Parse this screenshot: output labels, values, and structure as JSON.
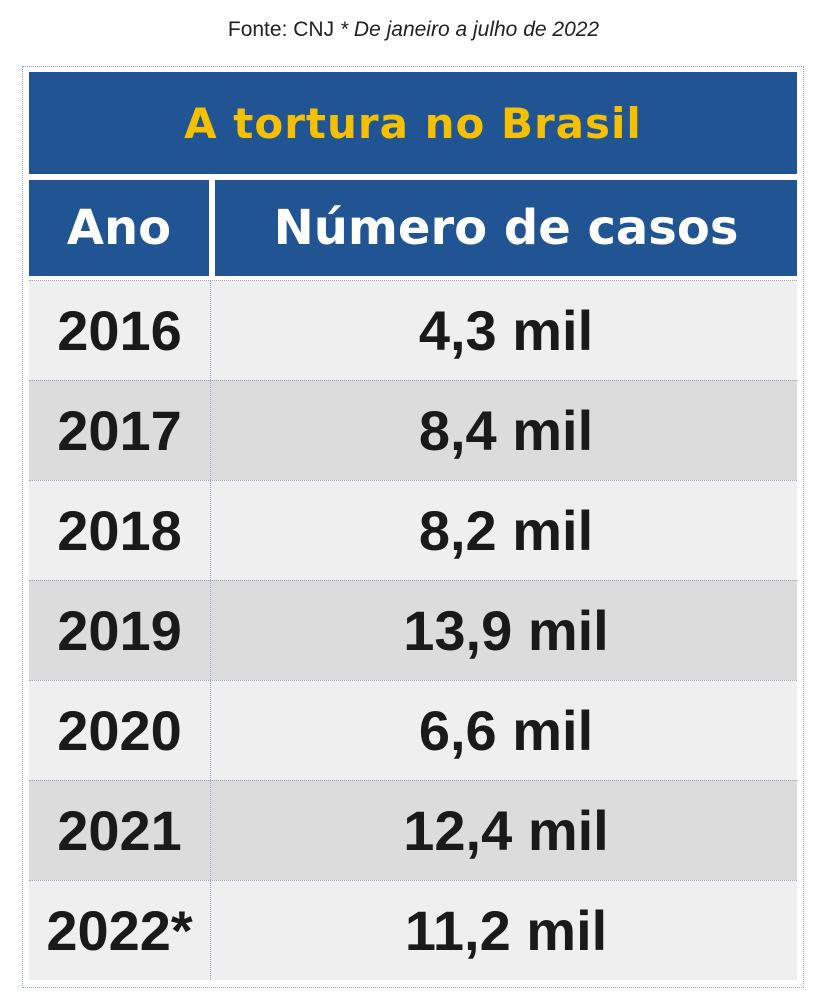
{
  "source": {
    "label": "Fonte: CNJ",
    "note": "* De janeiro a julho de 2022"
  },
  "colors": {
    "header_bg": "#215493",
    "title_text": "#f5c000",
    "header_text": "#ffffff",
    "row_light": "#efefef",
    "row_dark": "#dcdcdc"
  },
  "chart_data": {
    "type": "table",
    "title": "A tortura no Brasil",
    "columns": [
      "Ano",
      "Número de casos"
    ],
    "rows": [
      {
        "year": "2016",
        "cases": "4,3 mil"
      },
      {
        "year": "2017",
        "cases": "8,4 mil"
      },
      {
        "year": "2018",
        "cases": "8,2 mil"
      },
      {
        "year": "2019",
        "cases": "13,9 mil"
      },
      {
        "year": "2020",
        "cases": "6,6 mil"
      },
      {
        "year": "2021",
        "cases": "12,4 mil"
      },
      {
        "year": "2022*",
        "cases": "11,2 mil"
      }
    ],
    "values": [
      4.3,
      8.4,
      8.2,
      13.9,
      6.6,
      12.4,
      11.2
    ],
    "unit": "mil"
  }
}
